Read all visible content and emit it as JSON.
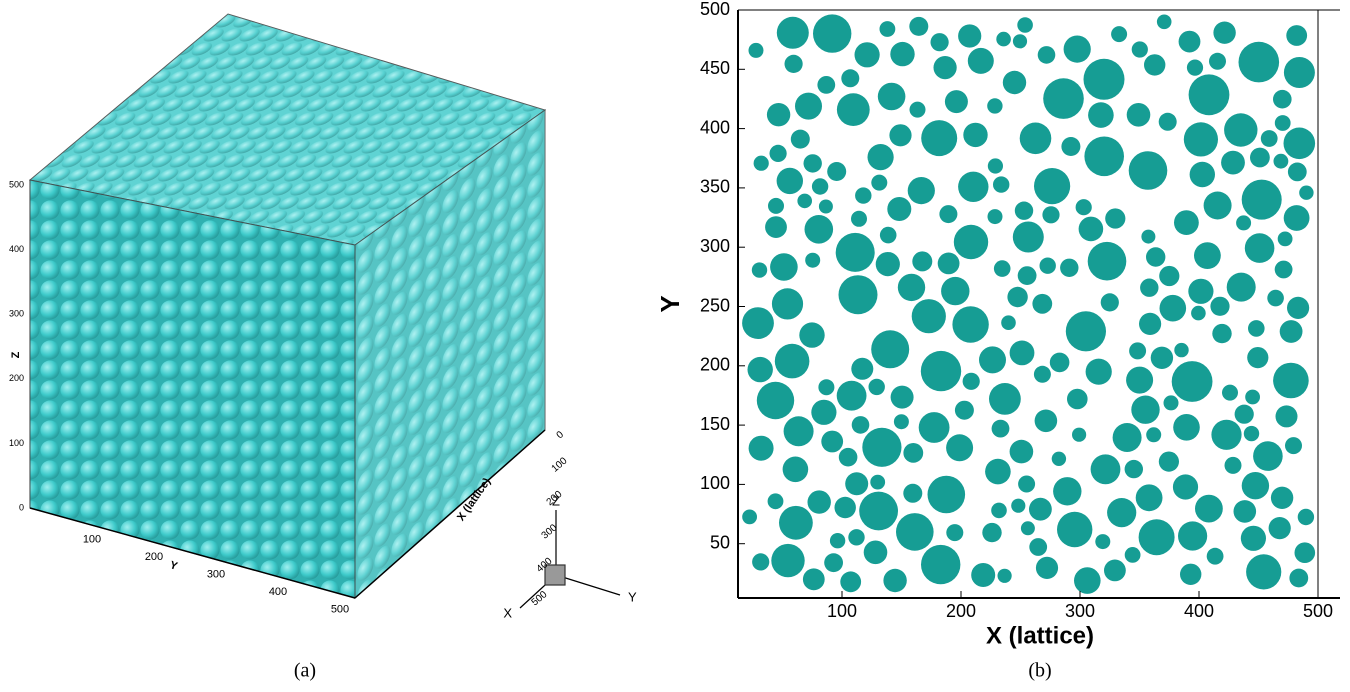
{
  "panel_a": {
    "caption": "(a)",
    "z_label": "Z",
    "y_label": "Y",
    "x_label": "X (lattice)",
    "z_ticks": [
      0,
      100,
      200,
      300,
      400,
      500
    ],
    "y_ticks": [
      100,
      200,
      300,
      400,
      500
    ],
    "x_ticks": [
      0,
      100,
      200,
      300,
      400,
      500
    ],
    "triad": {
      "z": "Z",
      "y": "Y",
      "x": "X"
    }
  },
  "panel_b": {
    "caption": "(b)",
    "y_label": "Y",
    "x_label": "X (lattice)",
    "yticks": [
      50,
      100,
      150,
      200,
      250,
      300,
      350,
      400,
      450,
      500
    ],
    "xticks": [
      100,
      200,
      300,
      400,
      500
    ]
  }
}
